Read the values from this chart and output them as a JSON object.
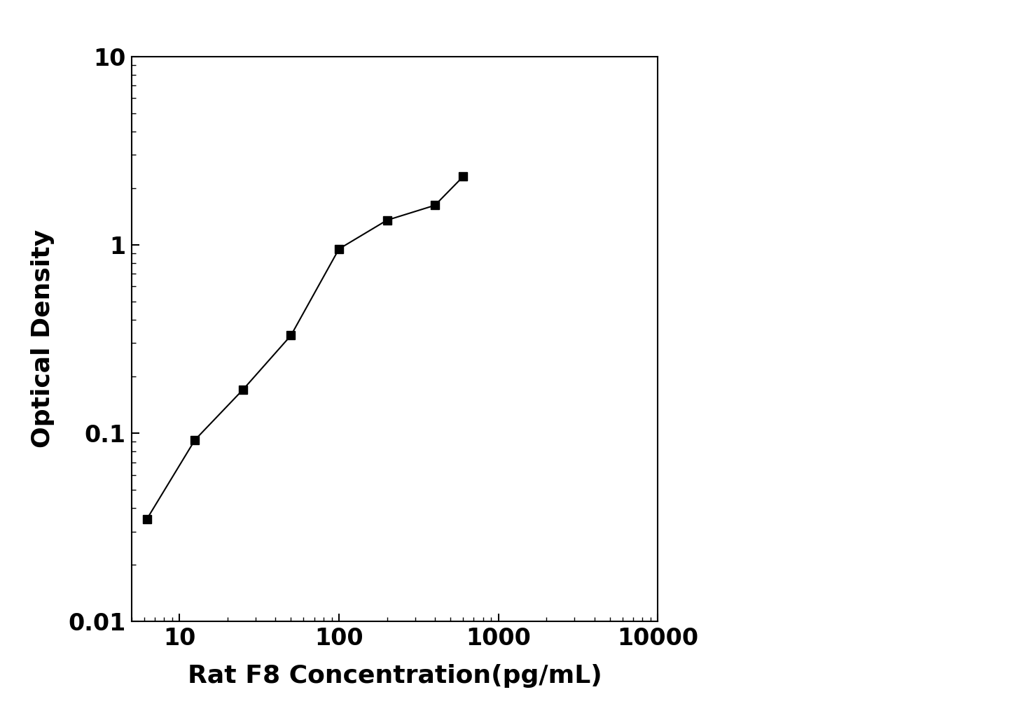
{
  "x": [
    6.25,
    12.5,
    25,
    50,
    100,
    200,
    400,
    600
  ],
  "y": [
    0.035,
    0.092,
    0.17,
    0.33,
    0.95,
    1.35,
    1.62,
    2.3
  ],
  "xlabel": "Rat F8 Concentration(pg/mL)",
  "ylabel": "Optical Density",
  "xlim": [
    5,
    10000
  ],
  "ylim": [
    0.01,
    10
  ],
  "xticks": [
    10,
    100,
    1000,
    10000
  ],
  "yticks": [
    0.01,
    0.1,
    1,
    10
  ],
  "background_color": "#ffffff",
  "line_color": "#000000",
  "marker_color": "#000000",
  "marker": "s",
  "marker_size": 9,
  "line_width": 1.5,
  "xlabel_fontsize": 26,
  "ylabel_fontsize": 26,
  "tick_fontsize": 24,
  "tick_fontweight": "bold",
  "label_fontweight": "bold"
}
